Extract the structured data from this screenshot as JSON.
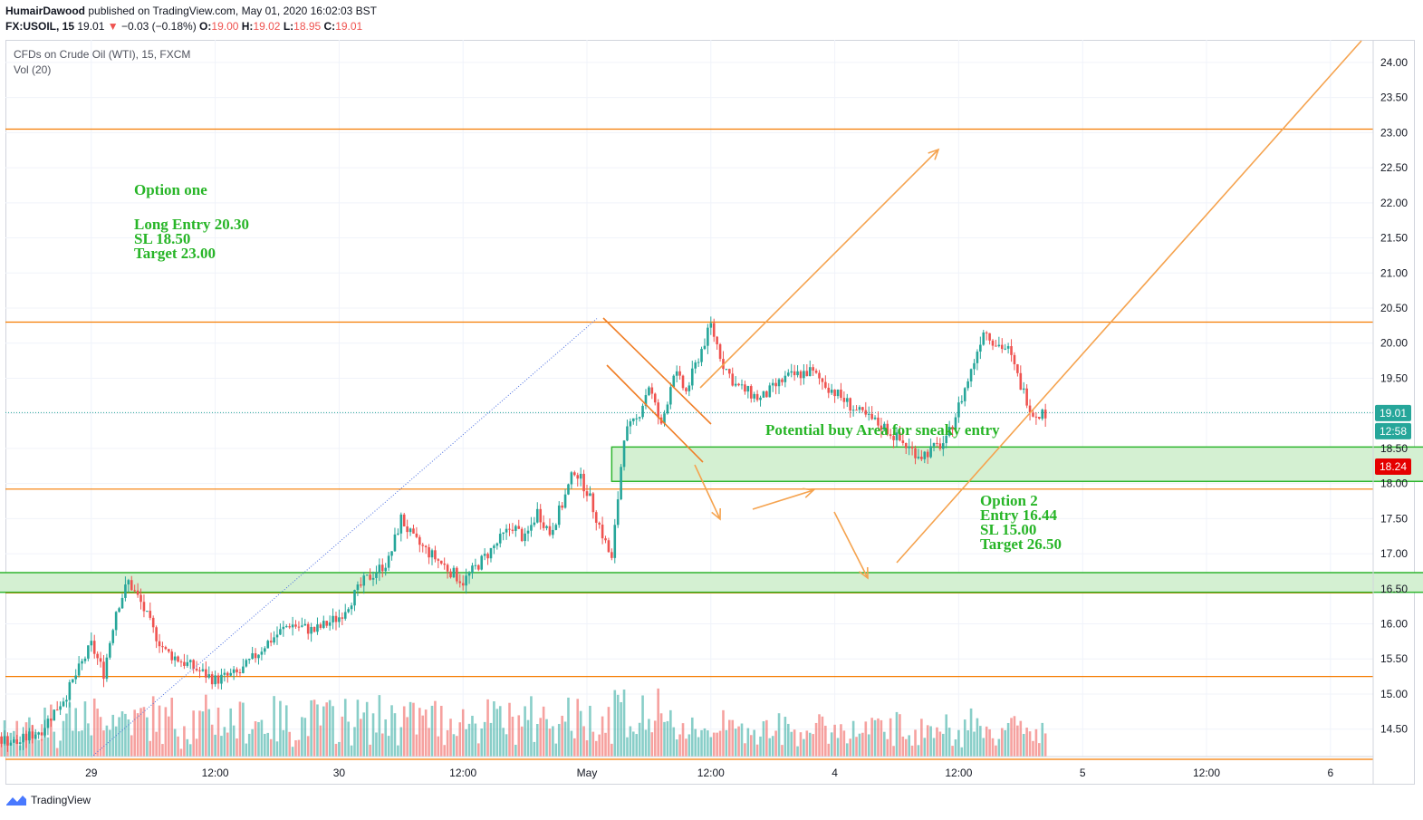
{
  "header": {
    "author": "HumairDawood",
    "published_text": "published on TradingView.com, May 01, 2020 16:02:03 BST",
    "symbol": "FX:USOIL, 15",
    "last": "19.01",
    "change_arrow": "▼",
    "change": "−0.03 (−0.18%)",
    "o_label": "O:",
    "o_value": "19.00",
    "h_label": "H:",
    "h_value": "19.02",
    "l_label": "L:",
    "l_value": "18.95",
    "c_label": "C:",
    "c_value": "19.01"
  },
  "legend": {
    "instrument": "CFDs on Crude Oil (WTI), 15, FXCM",
    "volume": "Vol (20)"
  },
  "annotations": {
    "option_one_title": "Option one",
    "option_one_lines": [
      "Long Entry 20.30",
      "SL 18.50",
      "Target 23.00"
    ],
    "buy_area": "Potential buy Area for sneaky entry",
    "option_two_lines": [
      "Option 2",
      "Entry 16.44",
      "SL 15.00",
      "Target 26.50"
    ]
  },
  "price_badges": {
    "last_price": "19.01",
    "countdown": "12:58",
    "level": "18.24"
  },
  "colors": {
    "up": "#26a69a",
    "down": "#ef5350",
    "level_line": "#f57c00",
    "arrow": "#f5a34f",
    "zone_fill": "#d4f0d2",
    "zone_border": "#2fb52f",
    "annotation_text": "#27b527",
    "dotted_trend": "#4a6ee0"
  },
  "footer": {
    "brand": "TradingView",
    "logo_icon": "tradingview-logo-icon"
  },
  "chart_data": {
    "type": "candlestick",
    "title": "CFDs on Crude Oil (WTI), 15, FXCM",
    "y_ticks": [
      "24.00",
      "23.50",
      "23.00",
      "22.50",
      "22.00",
      "21.50",
      "21.00",
      "20.50",
      "20.00",
      "19.50",
      "19.00",
      "18.50",
      "18.00",
      "17.50",
      "17.00",
      "16.50",
      "16.00",
      "15.50",
      "15.00",
      "14.50"
    ],
    "x_ticks": [
      "29",
      "12:00",
      "30",
      "12:00",
      "May",
      "12:00",
      "4",
      "12:00",
      "5",
      "12:00",
      "6"
    ],
    "ylim": [
      14.1,
      24.3
    ],
    "horizontal_levels": [
      23.05,
      20.3,
      17.92,
      16.44,
      15.25,
      14.07
    ],
    "zones": [
      {
        "from_x": 0.1,
        "to_x": 3.41,
        "from_y": 18.03,
        "to_y": 18.52
      },
      {
        "from_x": -2.7,
        "to_x": 4.24,
        "from_y": 16.45,
        "to_y": 16.73
      }
    ],
    "last_price": 19.01,
    "marked_level": 18.24,
    "series_close_path": [
      [
        -3.6,
        14.5
      ],
      [
        -3.1,
        14.3
      ],
      [
        -2.8,
        14.2
      ],
      [
        -2.7,
        14.3
      ],
      [
        -2.6,
        14.2
      ],
      [
        -2.5,
        14.3
      ],
      [
        -2.4,
        14.4
      ],
      [
        -2.3,
        14.3
      ],
      [
        -2.2,
        14.5
      ],
      [
        -2.1,
        15.0
      ],
      [
        -2.0,
        15.7
      ],
      [
        -1.95,
        15.3
      ],
      [
        -1.9,
        16.2
      ],
      [
        -1.85,
        16.6
      ],
      [
        -1.8,
        16.3
      ],
      [
        -1.75,
        15.9
      ],
      [
        -1.7,
        15.6
      ],
      [
        -1.6,
        15.4
      ],
      [
        -1.5,
        15.2
      ],
      [
        -1.4,
        15.3
      ],
      [
        -1.3,
        15.7
      ],
      [
        -1.2,
        16.0
      ],
      [
        -1.1,
        15.9
      ],
      [
        -1.0,
        16.1
      ],
      [
        -0.9,
        16.6
      ],
      [
        -0.8,
        16.9
      ],
      [
        -0.75,
        17.5
      ],
      [
        -0.7,
        17.2
      ],
      [
        -0.6,
        16.9
      ],
      [
        -0.5,
        16.6
      ],
      [
        -0.4,
        17.0
      ],
      [
        -0.3,
        17.4
      ],
      [
        -0.25,
        17.2
      ],
      [
        -0.2,
        17.6
      ],
      [
        -0.15,
        17.3
      ],
      [
        -0.1,
        17.7
      ],
      [
        -0.05,
        18.2
      ],
      [
        0.0,
        17.9
      ],
      [
        0.05,
        17.4
      ],
      [
        0.1,
        16.9
      ],
      [
        0.15,
        18.7
      ],
      [
        0.2,
        18.9
      ],
      [
        0.25,
        19.4
      ],
      [
        0.3,
        18.8
      ],
      [
        0.35,
        19.6
      ],
      [
        0.4,
        19.3
      ],
      [
        0.45,
        19.8
      ],
      [
        0.5,
        20.25
      ],
      [
        0.55,
        19.7
      ],
      [
        0.6,
        19.4
      ],
      [
        0.7,
        19.2
      ],
      [
        0.8,
        19.5
      ],
      [
        0.9,
        19.6
      ],
      [
        1.0,
        19.3
      ],
      [
        1.1,
        19.0
      ],
      [
        1.2,
        18.8
      ],
      [
        1.3,
        18.5
      ],
      [
        1.35,
        18.4
      ],
      [
        1.45,
        18.6
      ],
      [
        1.5,
        19.1
      ],
      [
        1.55,
        19.6
      ],
      [
        1.6,
        20.2
      ],
      [
        1.65,
        20.0
      ],
      [
        1.7,
        19.9
      ],
      [
        1.75,
        19.4
      ],
      [
        1.8,
        19.0
      ],
      [
        1.85,
        19.01
      ]
    ],
    "volume_note": "volume histogram beneath candles, Vol (20)"
  }
}
